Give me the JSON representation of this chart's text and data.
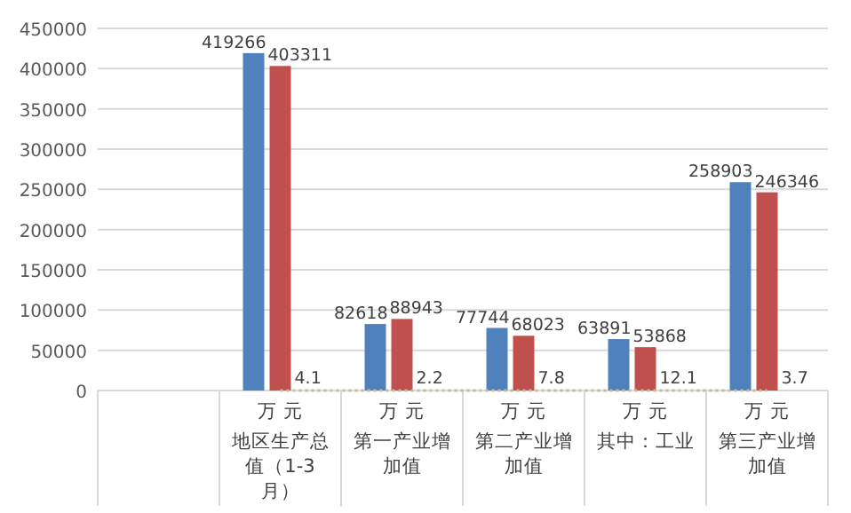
{
  "chart_data": {
    "type": "bar",
    "categories": [
      null,
      "地区生产总值（1-3月）",
      "第一产业增加值",
      "第二产业增加值",
      "其中：工业",
      "第三产业增加值"
    ],
    "series": [
      {
        "color": "#4f81bd",
        "values": [
          null,
          419266,
          82618,
          77744,
          63891,
          258903
        ]
      },
      {
        "color": "#c0504d",
        "values": [
          null,
          403311,
          88943,
          68023,
          53868,
          246346
        ]
      },
      {
        "type": "line",
        "line_style": "dotted",
        "color": "#c4bd97",
        "values": [
          null,
          4.1,
          2.2,
          7.8,
          12.1,
          3.7
        ]
      }
    ],
    "annotations": [
      "万 元",
      "万 元",
      "万 元",
      "万 元",
      "万 元"
    ],
    "ylim": [
      0,
      450000
    ],
    "yticks": [
      0,
      50000,
      100000,
      150000,
      200000,
      250000,
      300000,
      350000,
      400000,
      450000
    ],
    "grid": "y",
    "data_labels": true
  }
}
